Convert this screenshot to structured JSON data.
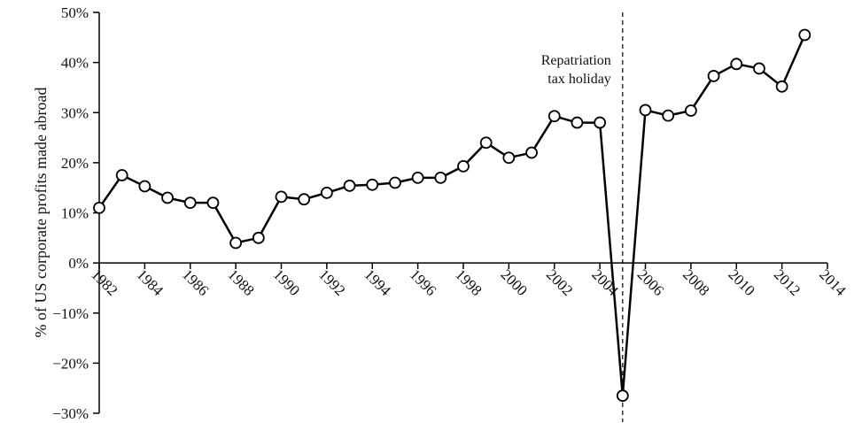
{
  "chart_data": {
    "type": "line",
    "y_label": "% of US corporate profits made abroad",
    "annotation": [
      "Repatriation",
      "tax holiday"
    ],
    "annotation_x": 2005,
    "x": [
      1982,
      1983,
      1984,
      1985,
      1986,
      1987,
      1988,
      1989,
      1990,
      1991,
      1992,
      1993,
      1994,
      1995,
      1996,
      1997,
      1998,
      1999,
      2000,
      2001,
      2002,
      2003,
      2004,
      2005,
      2006,
      2007,
      2008,
      2009,
      2010,
      2011,
      2012,
      2013
    ],
    "series": [
      {
        "color": "#000000",
        "values": [
          11,
          17.5,
          15.3,
          13,
          12,
          12,
          4,
          5,
          13.2,
          12.7,
          14,
          15.4,
          15.6,
          16,
          17,
          17,
          19.3,
          24,
          21,
          22,
          29.3,
          28,
          28,
          -26.5,
          30.5,
          29.4,
          30.4,
          37.3,
          39.7,
          38.8,
          35.2,
          45.5
        ]
      }
    ],
    "xlim": [
      1982,
      2014
    ],
    "xticks": [
      1982,
      1984,
      1986,
      1988,
      1990,
      1992,
      1994,
      1996,
      1998,
      2000,
      2002,
      2004,
      2006,
      2008,
      2010,
      2012,
      2014
    ],
    "ylim": [
      -30,
      50
    ],
    "yticks": [
      {
        "value": -30,
        "label": "−30%"
      },
      {
        "value": -20,
        "label": "−20%"
      },
      {
        "value": -10,
        "label": "−10%"
      },
      {
        "value": 0,
        "label": "0%"
      },
      {
        "value": 10,
        "label": "10%"
      },
      {
        "value": 20,
        "label": "20%"
      },
      {
        "value": 30,
        "label": "30%"
      },
      {
        "value": 40,
        "label": "40%"
      },
      {
        "value": 50,
        "label": "50%"
      }
    ]
  }
}
